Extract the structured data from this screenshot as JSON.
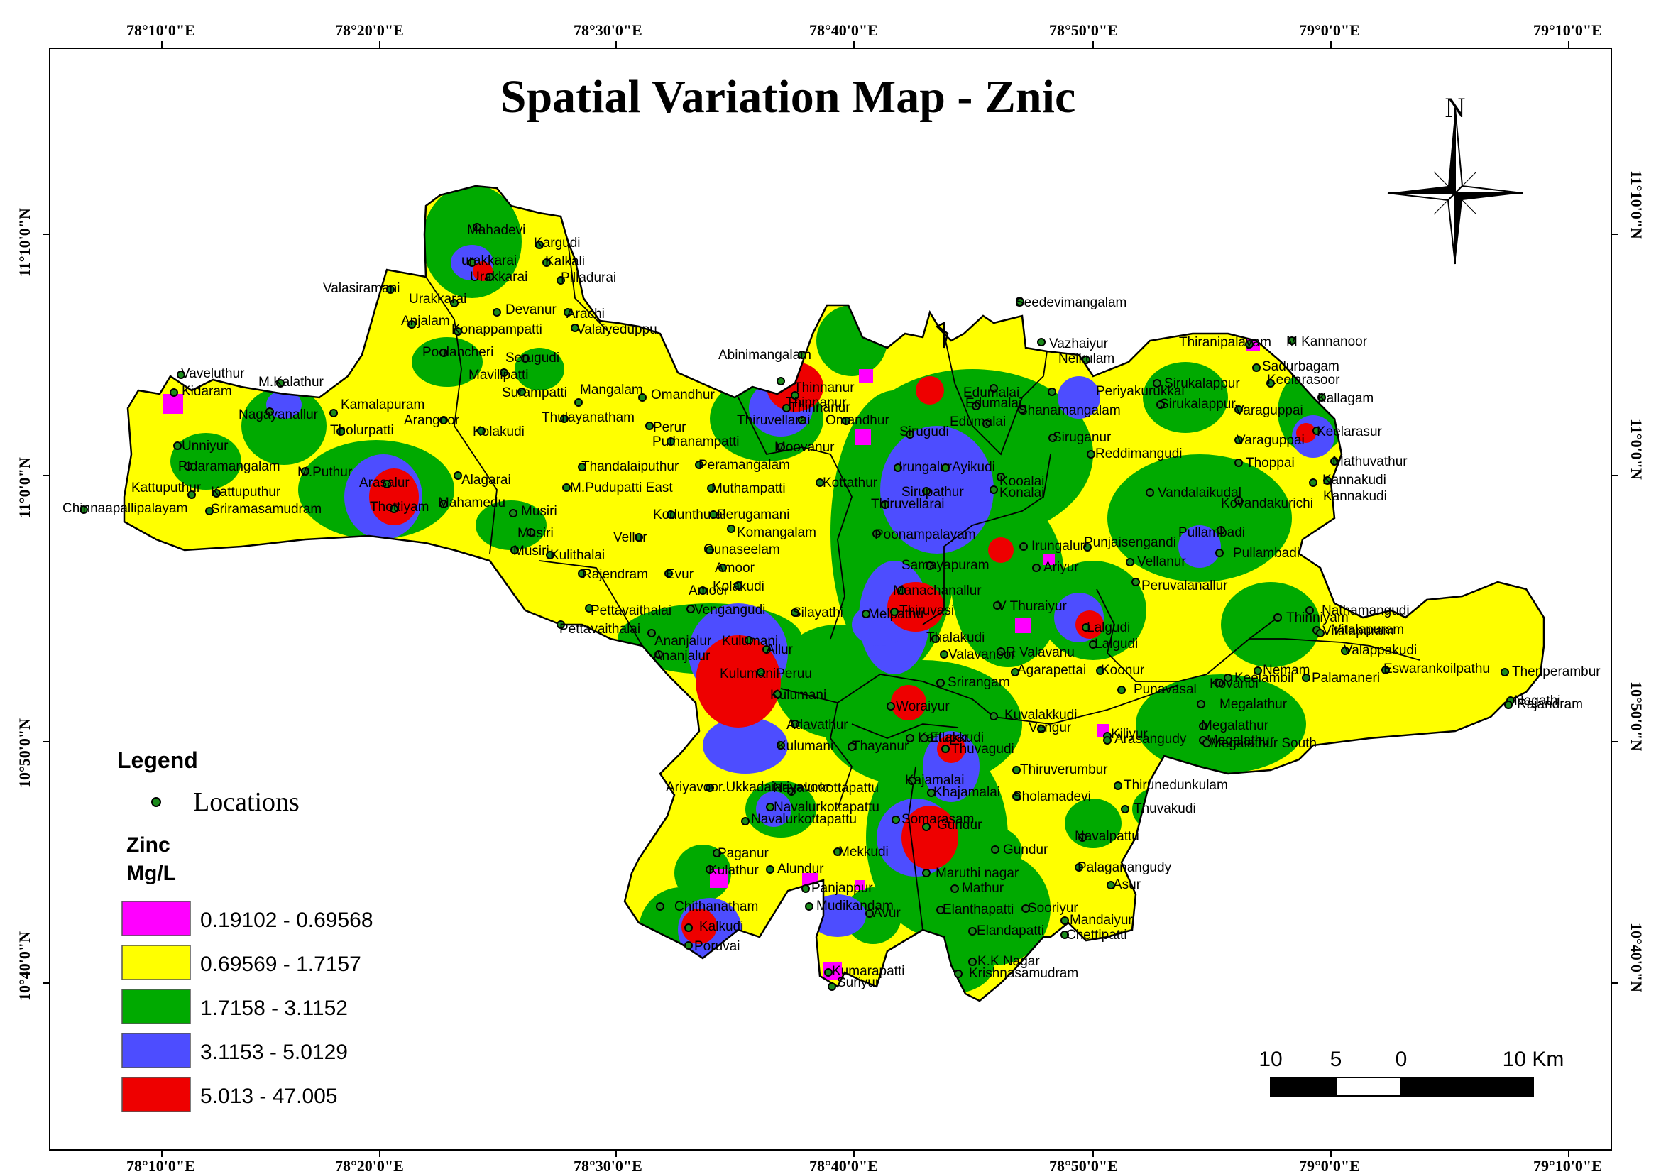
{
  "title": "Spatial Variation Map - Znic",
  "north_label": "N",
  "axes": {
    "top": [
      "78°10'0\"E",
      "78°20'0\"E",
      "78°30'0\"E",
      "78°40'0\"E",
      "78°50'0\"E",
      "79°0'0\"E",
      "79°10'0\"E"
    ],
    "bottom": [
      "78°10'0\"E",
      "78°20'0\"E",
      "78°30'0\"E",
      "78°40'0\"E",
      "78°50'0\"E",
      "79°0'0\"E",
      "79°10'0\"E"
    ],
    "left": [
      "11°10'0\"N",
      "11°0'0\"N",
      "10°50'0\"N",
      "10°40'0\"N"
    ],
    "right": [
      "11°10'0\"N",
      "11°0'0\"N",
      "10°50'0\"N",
      "10°40'0\"N"
    ]
  },
  "legend": {
    "title": "Legend",
    "locations_label": "Locations",
    "variable": "Zinc",
    "unit": "Mg/L",
    "classes": [
      {
        "range": "0.19102 - 0.69568",
        "color": "#ff00ff"
      },
      {
        "range": "0.69569 - 1.7157",
        "color": "#ffff00"
      },
      {
        "range": "1.7158 - 3.1152",
        "color": "#00aa00"
      },
      {
        "range": "3.1153 - 5.0129",
        "color": "#4d4dff"
      },
      {
        "range": "5.013 - 47.005",
        "color": "#ee0000"
      }
    ]
  },
  "scale_bar": {
    "labels": [
      "10",
      "5",
      "0",
      "10 Km"
    ]
  },
  "locations": [
    {
      "name": "Mahadevi"
    },
    {
      "name": "Kargudi"
    },
    {
      "name": "Kalkali"
    },
    {
      "name": "urakkarai"
    },
    {
      "name": "Urakkarai"
    },
    {
      "name": "Pilladurai"
    },
    {
      "name": "Valasiramani"
    },
    {
      "name": "Urakkarai"
    },
    {
      "name": "Devanur"
    },
    {
      "name": "Arachi"
    },
    {
      "name": "Anjalam"
    },
    {
      "name": "Konappampatti"
    },
    {
      "name": "Valaiyeduppu"
    },
    {
      "name": "Poolancheri"
    },
    {
      "name": "Serugudi"
    },
    {
      "name": "Mavilipatti"
    },
    {
      "name": "Vaveluthur"
    },
    {
      "name": "M.Kalathur"
    },
    {
      "name": "Kidaram"
    },
    {
      "name": "Nagayanallur"
    },
    {
      "name": "Kamalapuram"
    },
    {
      "name": "Surampatti"
    },
    {
      "name": "Mangalam"
    },
    {
      "name": "Omandhur"
    },
    {
      "name": "Arangoor"
    },
    {
      "name": "Kolakudi"
    },
    {
      "name": "Thulayanatham"
    },
    {
      "name": "Tholurpatti"
    },
    {
      "name": "Unniyur"
    },
    {
      "name": "Pidaramangalam"
    },
    {
      "name": "M.Puthur"
    },
    {
      "name": "Alagarai"
    },
    {
      "name": "Kattuputhur"
    },
    {
      "name": "Kattuputhur"
    },
    {
      "name": "Arasalur"
    },
    {
      "name": "Mahamedu"
    },
    {
      "name": "Chinnaapallipalayam"
    },
    {
      "name": "Sriramasamudram"
    },
    {
      "name": "Thottiyam"
    },
    {
      "name": "Musiri"
    },
    {
      "name": "Musiri"
    },
    {
      "name": "Musiri"
    },
    {
      "name": "Abinimangalam"
    },
    {
      "name": "Thinnanur"
    },
    {
      "name": "Thinnanur"
    },
    {
      "name": "Thinnanur"
    },
    {
      "name": "Thiruvellarai"
    },
    {
      "name": "Omandhur"
    },
    {
      "name": "Peramangalam"
    },
    {
      "name": "Puthanampatti"
    },
    {
      "name": "Perur"
    },
    {
      "name": "Thandalaiputhur"
    },
    {
      "name": "M.Pudupatti East"
    },
    {
      "name": "Muthampatti"
    },
    {
      "name": "Moovanur"
    },
    {
      "name": "Kottathur"
    },
    {
      "name": "Kodunthurai"
    },
    {
      "name": "Perugamani"
    },
    {
      "name": "Komangalam"
    },
    {
      "name": "Vellur"
    },
    {
      "name": "Kulithalai"
    },
    {
      "name": "Gunaseelam"
    },
    {
      "name": "Amoor"
    },
    {
      "name": "Rajendram"
    },
    {
      "name": "Evur"
    },
    {
      "name": "Amoor"
    },
    {
      "name": "Kolakudi"
    },
    {
      "name": "Pettavaithalai"
    },
    {
      "name": "Pettavaithalai"
    },
    {
      "name": "Vengangudi"
    },
    {
      "name": "Silayathi"
    },
    {
      "name": "Ananjalur"
    },
    {
      "name": "Ananjalur"
    },
    {
      "name": "Kulumani"
    },
    {
      "name": "Allur"
    },
    {
      "name": "KulumaniPeruu"
    },
    {
      "name": "Kulumani"
    },
    {
      "name": "Melpathu"
    },
    {
      "name": "Thiruvasi"
    },
    {
      "name": "Manachanallur"
    },
    {
      "name": "Samayapuram"
    },
    {
      "name": "Poonampalayam"
    },
    {
      "name": "Thiruvellarai"
    },
    {
      "name": "Sirupathur"
    },
    {
      "name": "Irungalur"
    },
    {
      "name": "Ayikudi"
    },
    {
      "name": "Kooalai"
    },
    {
      "name": "Konalai"
    },
    {
      "name": "Sirugudi"
    },
    {
      "name": "Edumalai"
    },
    {
      "name": "Edumalai"
    },
    {
      "name": "Edumalai"
    },
    {
      "name": "Seedevimangalam"
    },
    {
      "name": "Vazhaiyur"
    },
    {
      "name": "Periyakurukkai"
    },
    {
      "name": "Neikulam"
    },
    {
      "name": "Thiranipalayam"
    },
    {
      "name": "M Kannanoor"
    },
    {
      "name": "Sadurbagam"
    },
    {
      "name": "Keelarasoor"
    },
    {
      "name": "Sirukalappur"
    },
    {
      "name": "Sirukalappur"
    },
    {
      "name": "Kallagam"
    },
    {
      "name": "Varaguppai"
    },
    {
      "name": "Varaguppai"
    },
    {
      "name": "Keelarasur"
    },
    {
      "name": "Thoppai"
    },
    {
      "name": "Mathuvathur"
    },
    {
      "name": "Kannakudi"
    },
    {
      "name": "Kannakudi"
    },
    {
      "name": "Shanamangalam"
    },
    {
      "name": "Siruganur"
    },
    {
      "name": "Reddimangudi"
    },
    {
      "name": "Vandalaikudal"
    },
    {
      "name": "Kovandakurichi"
    },
    {
      "name": "Pullambadi"
    },
    {
      "name": "Pullambadi"
    },
    {
      "name": "Punjaisengandi"
    },
    {
      "name": "Vellanur"
    },
    {
      "name": "Peruvalanallur"
    },
    {
      "name": "Irungalur"
    },
    {
      "name": "Ariyur"
    },
    {
      "name": "V Thuraiyur"
    },
    {
      "name": "Lalgudi"
    },
    {
      "name": "Lalgudi"
    },
    {
      "name": "Thalakudi"
    },
    {
      "name": "R Valavanu"
    },
    {
      "name": "Valavanoor"
    },
    {
      "name": "Srirangam"
    },
    {
      "name": "Agarapettai"
    },
    {
      "name": "Koonur"
    },
    {
      "name": "Punavasal"
    },
    {
      "name": "Keelambil"
    },
    {
      "name": "Kovandi"
    },
    {
      "name": "Nemam"
    },
    {
      "name": "Palamaneri"
    },
    {
      "name": "Thinniyam"
    },
    {
      "name": "Nathamangudi"
    },
    {
      "name": "Vitalapuram"
    },
    {
      "name": "Vitalapuram"
    },
    {
      "name": "Valappakudi"
    },
    {
      "name": "Eswarankoilpathu"
    },
    {
      "name": "Thenperambur"
    },
    {
      "name": "Nagathi"
    },
    {
      "name": "Rajandram"
    },
    {
      "name": "Megalathur"
    },
    {
      "name": "Megalathur"
    },
    {
      "name": "Megalathur"
    },
    {
      "name": "Megalathur South"
    },
    {
      "name": "Kiliyur"
    },
    {
      "name": "Arasangudy"
    },
    {
      "name": "Vengur"
    },
    {
      "name": "Kuvalakkudi"
    },
    {
      "name": "Woraiyur"
    },
    {
      "name": "Adavathur"
    },
    {
      "name": "Kulumani"
    },
    {
      "name": "Thayanur"
    },
    {
      "name": "Kattupar"
    },
    {
      "name": "Ellakkudi"
    },
    {
      "name": "Thuvagudi"
    },
    {
      "name": "Thiruverumbur"
    },
    {
      "name": "Thirunedunkulam"
    },
    {
      "name": "Thuvakudi"
    },
    {
      "name": "Sholamadevi"
    },
    {
      "name": "Kajamalai"
    },
    {
      "name": "Khajamalai"
    },
    {
      "name": "Navalurkottapattu"
    },
    {
      "name": "Navalurkottapattu"
    },
    {
      "name": "Ariyavoor.Ukkadaiariyavoor"
    },
    {
      "name": "Navalurkottapattu"
    },
    {
      "name": "Somarasam"
    },
    {
      "name": "Gundur"
    },
    {
      "name": "Gundur"
    },
    {
      "name": "Navalpattu"
    },
    {
      "name": "Palaganangudy"
    },
    {
      "name": "Asur"
    },
    {
      "name": "Paganur"
    },
    {
      "name": "Mekkudi"
    },
    {
      "name": "Alundur"
    },
    {
      "name": "Panjappur"
    },
    {
      "name": "Kulathur"
    },
    {
      "name": "Maruthi nagar"
    },
    {
      "name": "Mathur"
    },
    {
      "name": "Mudikandam"
    },
    {
      "name": "Avur"
    },
    {
      "name": "Elanthapatti"
    },
    {
      "name": "Sooriyur"
    },
    {
      "name": "Mandaiyur"
    },
    {
      "name": "Chettipatti"
    },
    {
      "name": "Elandapatti"
    },
    {
      "name": "Chithanatham"
    },
    {
      "name": "Kalkudi"
    },
    {
      "name": "Poruvai"
    },
    {
      "name": "K.K Nagar"
    },
    {
      "name": "Krishnasamudram"
    },
    {
      "name": "Kumarapatti"
    },
    {
      "name": "Suriyur"
    }
  ]
}
